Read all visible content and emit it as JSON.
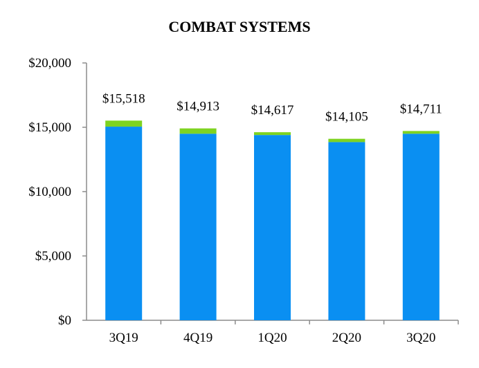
{
  "chart_data": {
    "type": "bar",
    "stacked": true,
    "title": "COMBAT SYSTEMS",
    "categories": [
      "3Q19",
      "4Q19",
      "1Q20",
      "2Q20",
      "3Q20"
    ],
    "totals": [
      15518,
      14913,
      14617,
      14105,
      14711
    ],
    "total_labels": [
      "$15,518",
      "$14,913",
      "$14,617",
      "$14,105",
      "$14,711"
    ],
    "series": [
      {
        "values": [
          15050,
          14500,
          14400,
          13850,
          14500
        ],
        "color": "#0a8ff2"
      },
      {
        "values": [
          468,
          413,
          217,
          255,
          211
        ],
        "color": "#7ed321"
      }
    ],
    "ylim": [
      0,
      20000
    ],
    "yticks": [
      0,
      5000,
      10000,
      15000,
      20000
    ],
    "ytick_labels": [
      "$0",
      "$5,000",
      "$10,000",
      "$15,000",
      "$20,000"
    ],
    "xlabel": "",
    "ylabel": "",
    "grid": false,
    "legend": "none"
  }
}
